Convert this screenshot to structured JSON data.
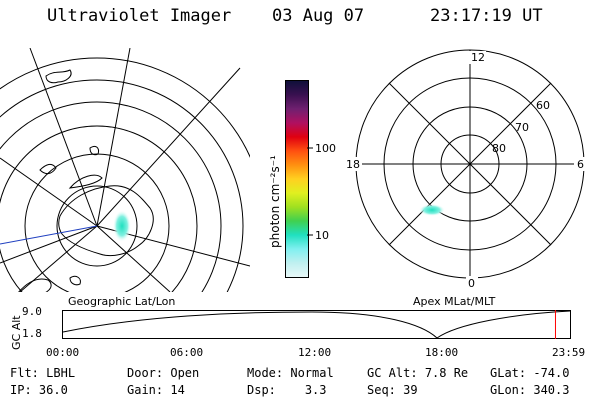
{
  "header": {
    "title": "Ultraviolet Imager",
    "date": "03 Aug 07",
    "time": "23:17:19 UT"
  },
  "colorbar": {
    "label": "photon cm⁻²s⁻¹",
    "ticks": [
      {
        "value": 100,
        "label": "100"
      },
      {
        "value": 10,
        "label": "10"
      }
    ],
    "colors": [
      "#10103a",
      "#3a1050",
      "#702070",
      "#b01060",
      "#e00010",
      "#ff5010",
      "#ff9010",
      "#ffd020",
      "#e0f020",
      "#a0e020",
      "#40d050",
      "#20e0c0",
      "#80f0f0",
      "#c0f0f0",
      "#e8f8f8"
    ]
  },
  "geo_map": {
    "caption": "Geographic Lat/Lon"
  },
  "polar_map": {
    "caption": "Apex MLat/MLT",
    "mlt_labels": {
      "top": "12",
      "right": "6",
      "bottom": "0",
      "left": "18"
    },
    "mlat_labels": [
      "60",
      "70",
      "80"
    ]
  },
  "altitude_plot": {
    "ylabel": "GC Alt",
    "y_ticks": [
      "9.0",
      "1.8"
    ],
    "x_ticks": [
      "00:00",
      "06:00",
      "12:00",
      "18:00",
      "23:59"
    ],
    "current_time_marker_hours": 23.29,
    "marker_color": "#ff0000"
  },
  "status": {
    "row1": [
      {
        "key": "Flt:",
        "value": "LBHL"
      },
      {
        "key": "Door:",
        "value": "Open"
      },
      {
        "key": "Mode:",
        "value": "Normal"
      },
      {
        "key": "GC Alt:",
        "value": "7.8 Re"
      },
      {
        "key": "GLat:",
        "value": "-74.0"
      }
    ],
    "row2": [
      {
        "key": "IP:",
        "value": "36.0"
      },
      {
        "key": "Gain:",
        "value": "14"
      },
      {
        "key": "Dsp:",
        "value": "3.3"
      },
      {
        "key": "Seq:",
        "value": "39"
      },
      {
        "key": "GLon:",
        "value": "340.3"
      }
    ]
  }
}
